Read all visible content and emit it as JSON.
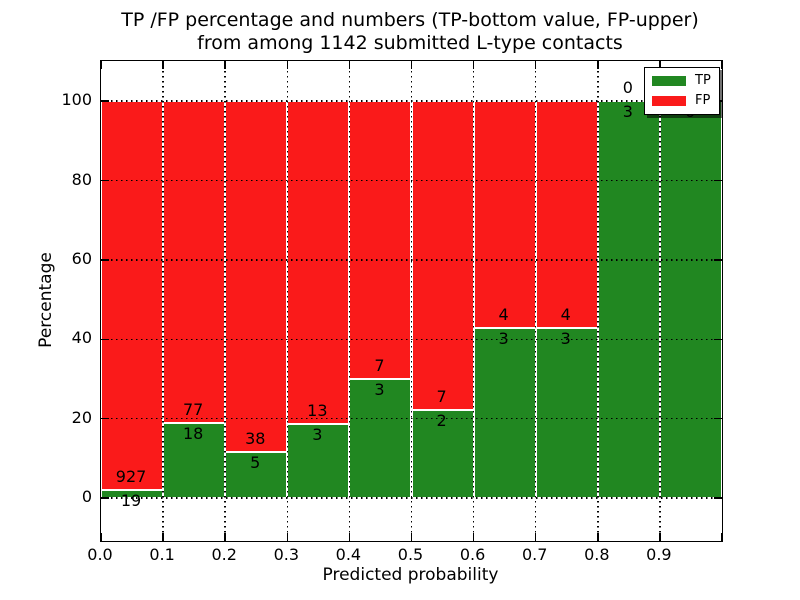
{
  "title": {
    "line1": "TP /FP percentage and numbers (TP-bottom value, FP-upper)",
    "line2": "from among 1142 submitted L-type contacts"
  },
  "axes": {
    "xlabel": "Predicted probability",
    "ylabel": "Percentage",
    "xlim": [
      0.0,
      1.0
    ],
    "ylim": [
      -10.8,
      110.1
    ],
    "x_ticks": [
      {
        "value": 0.0,
        "label": "0.0"
      },
      {
        "value": 0.1,
        "label": "0.1"
      },
      {
        "value": 0.2,
        "label": "0.2"
      },
      {
        "value": 0.3,
        "label": "0.3"
      },
      {
        "value": 0.4,
        "label": "0.4"
      },
      {
        "value": 0.5,
        "label": "0.5"
      },
      {
        "value": 0.6,
        "label": "0.6"
      },
      {
        "value": 0.7,
        "label": "0.7"
      },
      {
        "value": 0.8,
        "label": "0.8"
      },
      {
        "value": 0.9,
        "label": "0.9"
      },
      {
        "value": 1.0,
        "label": ""
      }
    ],
    "y_ticks": [
      {
        "value": 0,
        "label": "0"
      },
      {
        "value": 20,
        "label": "20"
      },
      {
        "value": 40,
        "label": "40"
      },
      {
        "value": 60,
        "label": "60"
      },
      {
        "value": 80,
        "label": "80"
      },
      {
        "value": 100,
        "label": "100"
      }
    ]
  },
  "legend": {
    "position": "upper-right",
    "items": [
      {
        "label": "TP",
        "color": "#218721"
      },
      {
        "label": "FP",
        "color": "#fa1a1a"
      }
    ]
  },
  "chart_data": {
    "type": "bar",
    "stacked": true,
    "title": "TP /FP percentage and numbers (TP-bottom value, FP-upper) from among 1142 submitted L-type contacts",
    "xlabel": "Predicted probability",
    "ylabel": "Percentage",
    "total_contacts": 1142,
    "categories": [
      "0.0-0.1",
      "0.1-0.2",
      "0.2-0.3",
      "0.3-0.4",
      "0.4-0.5",
      "0.5-0.6",
      "0.6-0.7",
      "0.7-0.8",
      "0.8-0.9",
      "0.9-1.0"
    ],
    "bins": [
      {
        "range": [
          0.0,
          0.1
        ],
        "tp": 19,
        "fp": 927,
        "tp_percent": 2.0
      },
      {
        "range": [
          0.1,
          0.2
        ],
        "tp": 18,
        "fp": 77,
        "tp_percent": 18.9
      },
      {
        "range": [
          0.2,
          0.3
        ],
        "tp": 5,
        "fp": 38,
        "tp_percent": 11.6
      },
      {
        "range": [
          0.3,
          0.4
        ],
        "tp": 3,
        "fp": 13,
        "tp_percent": 18.8
      },
      {
        "range": [
          0.4,
          0.5
        ],
        "tp": 3,
        "fp": 7,
        "tp_percent": 30.0
      },
      {
        "range": [
          0.5,
          0.6
        ],
        "tp": 2,
        "fp": 7,
        "tp_percent": 22.2
      },
      {
        "range": [
          0.6,
          0.7
        ],
        "tp": 3,
        "fp": 4,
        "tp_percent": 42.9
      },
      {
        "range": [
          0.7,
          0.8
        ],
        "tp": 3,
        "fp": 4,
        "tp_percent": 42.9
      },
      {
        "range": [
          0.8,
          0.9
        ],
        "tp": 3,
        "fp": 0,
        "tp_percent": 100.0
      },
      {
        "range": [
          0.9,
          1.0
        ],
        "tp": 6,
        "fp": 0,
        "tp_percent": 100.0
      }
    ],
    "series": [
      {
        "name": "TP",
        "color": "#218721",
        "counts": [
          19,
          18,
          5,
          3,
          3,
          2,
          3,
          3,
          3,
          6
        ]
      },
      {
        "name": "FP",
        "color": "#fa1a1a",
        "counts": [
          927,
          77,
          38,
          13,
          7,
          7,
          4,
          4,
          0,
          0
        ]
      }
    ],
    "colors": {
      "tp": "#218721",
      "fp": "#fa1a1a",
      "bar_edge": "#ffffff",
      "grid": "#000000"
    },
    "grid": {
      "style": "dotted",
      "drawn_above_bars": true
    },
    "annotation_rule": "TP count below green/red boundary, FP count above boundary",
    "xlim": [
      0.0,
      1.0
    ],
    "ylim": [
      -10.8,
      110.1
    ]
  }
}
